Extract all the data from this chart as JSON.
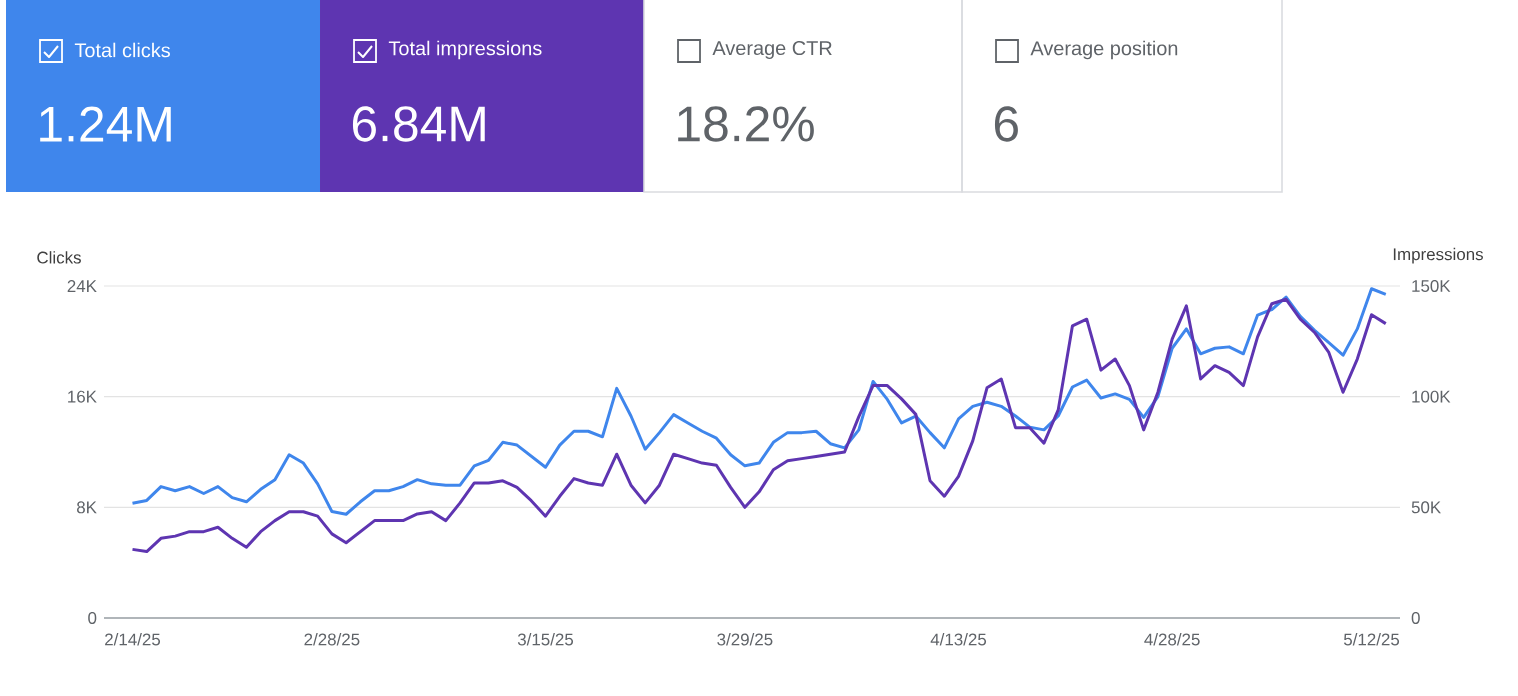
{
  "chart_data": {
    "type": "line",
    "annotations": [
      "Total clicks",
      "1.24M",
      "Total impressions",
      "6.84M",
      "Average CTR",
      "18.2%",
      "Average position",
      "6"
    ],
    "ylabel": "Clicks",
    "y2label": "Impressions",
    "x": [
      "2025-02-14",
      "2025-02-15",
      "2025-02-16",
      "2025-02-17",
      "2025-02-18",
      "2025-02-19",
      "2025-02-20",
      "2025-02-21",
      "2025-02-22",
      "2025-02-23",
      "2025-02-24",
      "2025-02-25",
      "2025-02-26",
      "2025-02-27",
      "2025-02-28",
      "2025-03-01",
      "2025-03-02",
      "2025-03-03",
      "2025-03-04",
      "2025-03-05",
      "2025-03-06",
      "2025-03-07",
      "2025-03-08",
      "2025-03-09",
      "2025-03-10",
      "2025-03-11",
      "2025-03-12",
      "2025-03-13",
      "2025-03-14",
      "2025-03-15",
      "2025-03-16",
      "2025-03-17",
      "2025-03-18",
      "2025-03-19",
      "2025-03-20",
      "2025-03-21",
      "2025-03-22",
      "2025-03-23",
      "2025-03-24",
      "2025-03-25",
      "2025-03-26",
      "2025-03-27",
      "2025-03-28",
      "2025-03-29",
      "2025-03-30",
      "2025-03-31",
      "2025-04-01",
      "2025-04-02",
      "2025-04-03",
      "2025-04-04",
      "2025-04-05",
      "2025-04-06",
      "2025-04-07",
      "2025-04-08",
      "2025-04-09",
      "2025-04-10",
      "2025-04-11",
      "2025-04-12",
      "2025-04-13",
      "2025-04-14",
      "2025-04-15",
      "2025-04-16",
      "2025-04-17",
      "2025-04-18",
      "2025-04-19",
      "2025-04-20",
      "2025-04-21",
      "2025-04-22",
      "2025-04-23",
      "2025-04-24",
      "2025-04-25",
      "2025-04-26",
      "2025-04-27",
      "2025-04-28",
      "2025-04-29",
      "2025-04-30",
      "2025-05-01",
      "2025-05-02",
      "2025-05-03",
      "2025-05-04",
      "2025-05-05",
      "2025-05-06",
      "2025-05-07",
      "2025-05-08",
      "2025-05-09",
      "2025-05-10",
      "2025-05-11",
      "2025-05-12",
      "2025-05-13"
    ],
    "series": [
      {
        "color": "#3f86ec",
        "values": [
          8300,
          8500,
          9500,
          9200,
          9500,
          9000,
          9500,
          8700,
          8400,
          9300,
          10000,
          11800,
          11200,
          9700,
          7700,
          7500,
          8400,
          9200,
          9200,
          9500,
          10000,
          9700,
          9600,
          9600,
          11000,
          11400,
          12700,
          12500,
          11700,
          10900,
          12500,
          13500,
          13500,
          13100,
          16600,
          14600,
          12200,
          13400,
          14700,
          14100,
          13500,
          13000,
          11800,
          11000,
          11200,
          12700,
          13400,
          13400,
          13500,
          12600,
          12300,
          13600,
          17100,
          15800,
          14100,
          14600,
          13400,
          12300,
          14400,
          15300,
          15600,
          15300,
          14600,
          13800,
          13600,
          14600,
          16700,
          17200,
          15900,
          16200,
          15800,
          14500,
          16000,
          19500,
          20900,
          19100,
          19500,
          19600,
          19100,
          21900,
          22300,
          23200,
          21800,
          20800,
          19900,
          19000,
          20900,
          23800,
          23400
        ]
      },
      {
        "color": "#5e35b1",
        "axis": "y2",
        "values": [
          31000,
          30000,
          36000,
          37000,
          39000,
          39000,
          41000,
          36000,
          32000,
          39000,
          44000,
          48000,
          48000,
          46000,
          38000,
          34000,
          39000,
          44000,
          44000,
          44000,
          47000,
          48000,
          44000,
          52000,
          61000,
          61000,
          62000,
          59000,
          53000,
          46000,
          55000,
          63000,
          61000,
          60000,
          74000,
          60000,
          52000,
          60000,
          74000,
          72000,
          70000,
          69000,
          59000,
          50000,
          57000,
          67000,
          71000,
          72000,
          73000,
          74000,
          75000,
          91000,
          105000,
          105000,
          99000,
          92000,
          62000,
          55000,
          64000,
          80000,
          104000,
          108000,
          86000,
          86000,
          79000,
          94000,
          132000,
          135000,
          112000,
          117000,
          105000,
          85000,
          102000,
          126000,
          141000,
          108000,
          114000,
          111000,
          105000,
          127000,
          142000,
          144000,
          135000,
          129000,
          120000,
          102000,
          117000,
          137000,
          133000
        ]
      }
    ],
    "xlim": [
      "2025-02-12",
      "2025-05-14"
    ],
    "xticks": [
      {
        "value": "2025-02-14",
        "label": "2/14/25"
      },
      {
        "value": "2025-02-28",
        "label": "2/28/25"
      },
      {
        "value": "2025-03-15",
        "label": "3/15/25"
      },
      {
        "value": "2025-03-29",
        "label": "3/29/25"
      },
      {
        "value": "2025-04-13",
        "label": "4/13/25"
      },
      {
        "value": "2025-04-28",
        "label": "4/28/25"
      },
      {
        "value": "2025-05-12",
        "label": "5/12/25"
      }
    ],
    "ylim": [
      0,
      24000
    ],
    "yticks": [
      0,
      {
        "value": 8000,
        "label": "8K"
      },
      {
        "value": 16000,
        "label": "16K"
      },
      {
        "value": 24000,
        "label": "24K"
      }
    ],
    "y2lim": [
      0,
      150000
    ],
    "y2ticks": [
      0,
      {
        "value": 50000,
        "label": "50K"
      },
      {
        "value": 100000,
        "label": "100K"
      },
      {
        "value": 150000,
        "label": "150K"
      }
    ],
    "grid": "y",
    "marker": "none",
    "line_style": "solid"
  }
}
